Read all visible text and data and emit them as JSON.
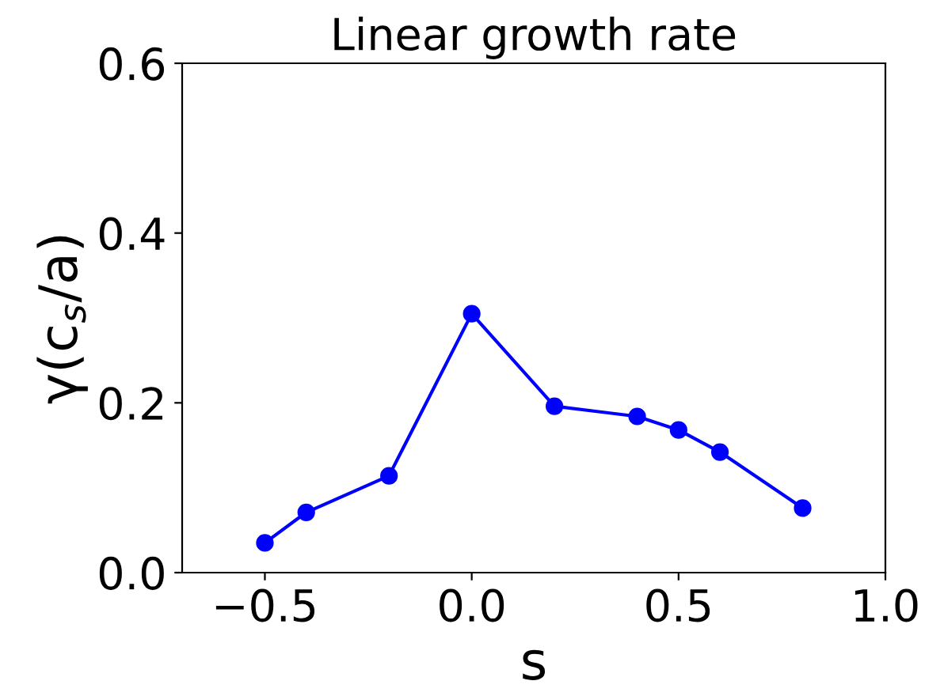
{
  "chart_data": {
    "type": "line",
    "title": "Linear growth rate",
    "xlabel": "s",
    "ylabel": "γ(c$_{s}$/a)",
    "x": [
      -0.5,
      -0.4,
      -0.2,
      0.0,
      0.2,
      0.4,
      0.5,
      0.6,
      0.8
    ],
    "series": [
      {
        "color": "#0000ff",
        "values": [
          0.035,
          0.071,
          0.114,
          0.305,
          0.196,
          0.184,
          0.168,
          0.142,
          0.076
        ]
      }
    ],
    "marker": "circle",
    "line_style": "solid",
    "grid": false,
    "legend": false,
    "xlim": [
      -0.7,
      1.0
    ],
    "xticks": [
      {
        "value": -0.5,
        "label": "−0.5"
      },
      {
        "value": 0,
        "label": "0.0"
      },
      0.5,
      {
        "value": 1,
        "label": "1.0"
      }
    ],
    "ylim": [
      0.0,
      0.6
    ],
    "yticks": [
      {
        "value": 0,
        "label": "0.0"
      },
      0.2,
      0.4,
      0.6
    ]
  }
}
